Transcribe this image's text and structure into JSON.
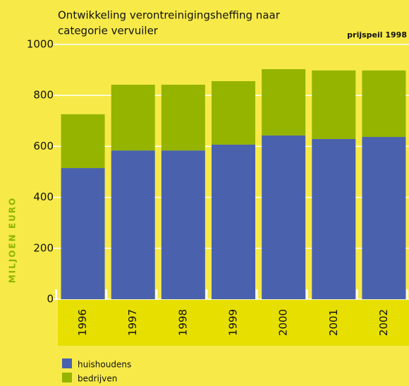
{
  "chart_data": {
    "type": "stacked-bar",
    "title": [
      "Ontwikkeling verontreinigingsheffing naar",
      "categorie vervuiler"
    ],
    "subtitle": "prijspeil 1998",
    "ylabel": "MILJOEN EURO",
    "categories": [
      "1996",
      "1997",
      "1998",
      "1999",
      "2000",
      "2001",
      "2002"
    ],
    "series": [
      {
        "name": "huishoudens",
        "color": "#4a62ad",
        "values": [
          515,
          584,
          584,
          607,
          643,
          629,
          637
        ]
      },
      {
        "name": "bedrijven",
        "color": "#94b400",
        "values": [
          211,
          258,
          258,
          249,
          260,
          269,
          261
        ]
      }
    ],
    "ylim": [
      0,
      1000
    ],
    "yticks": [
      0,
      200,
      400,
      600,
      800,
      1000
    ],
    "grid": true
  }
}
